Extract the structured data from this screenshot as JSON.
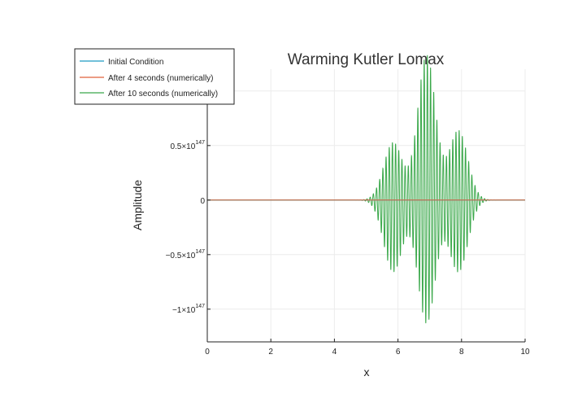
{
  "chart_data": {
    "type": "line",
    "title": "Warming Kutler Lomax",
    "xlabel": "x",
    "ylabel": "Amplitude",
    "xlim": [
      0,
      10
    ],
    "ylim": [
      -1.3e+147,
      1.2e+147
    ],
    "grid": true,
    "legend_position": "top-left",
    "x_ticks": [
      {
        "value": 0,
        "label": "0"
      },
      {
        "value": 2,
        "label": "2"
      },
      {
        "value": 4,
        "label": "4"
      },
      {
        "value": 6,
        "label": "6"
      },
      {
        "value": 8,
        "label": "8"
      },
      {
        "value": 10,
        "label": "10"
      }
    ],
    "y_ticks": [
      {
        "value": 1e+147,
        "mantissa": "1",
        "exponent": "147"
      },
      {
        "value": 5e+146,
        "mantissa": "0.5",
        "exponent": "147"
      },
      {
        "value": 0,
        "mantissa": "0",
        "exponent": ""
      },
      {
        "value": -5e+146,
        "mantissa": "−0.5",
        "exponent": "147"
      },
      {
        "value": -1e+147,
        "mantissa": "−1",
        "exponent": "147"
      }
    ],
    "series": [
      {
        "name": "Initial Condition",
        "color": "#1f9bc4",
        "constant": 0
      },
      {
        "name": "After 4 seconds (numerically)",
        "color": "#e0623a",
        "constant": 0
      },
      {
        "name": "After 10 seconds (numerically)",
        "color": "#3aa84a",
        "oscillation_period": 0.1,
        "envelope_peaks": [
          {
            "x": 5.85,
            "amplitude": 5.3e+146,
            "negative_amplitude": -6.6e+146,
            "width": 0.42
          },
          {
            "x": 6.9,
            "amplitude": 1.33e+147,
            "negative_amplitude": -1.13e+147,
            "width": 0.4
          },
          {
            "x": 7.9,
            "amplitude": 6.4e+146,
            "negative_amplitude": -6.6e+146,
            "width": 0.42
          }
        ],
        "support": [
          4.5,
          9.3
        ]
      }
    ]
  }
}
